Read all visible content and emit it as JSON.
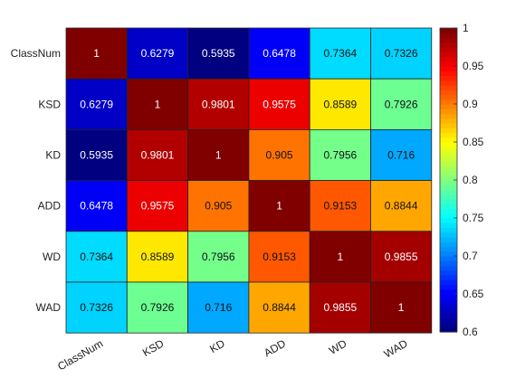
{
  "chart_data": {
    "type": "heatmap",
    "title": "",
    "xlabel": "",
    "ylabel": "",
    "rows": [
      "ClassNum",
      "KSD",
      "KD",
      "ADD",
      "WD",
      "WAD"
    ],
    "cols": [
      "ClassNum",
      "KSD",
      "KD",
      "ADD",
      "WD",
      "WAD"
    ],
    "values": [
      [
        1,
        0.6279,
        0.5935,
        0.6478,
        0.7364,
        0.7326
      ],
      [
        0.6279,
        1,
        0.9801,
        0.9575,
        0.8589,
        0.7926
      ],
      [
        0.5935,
        0.9801,
        1,
        0.905,
        0.7956,
        0.716
      ],
      [
        0.6478,
        0.9575,
        0.905,
        1,
        0.9153,
        0.8844
      ],
      [
        0.7364,
        0.8589,
        0.7956,
        0.9153,
        1,
        0.9855
      ],
      [
        0.7326,
        0.7926,
        0.716,
        0.8844,
        0.9855,
        1
      ]
    ],
    "labels": [
      [
        "1",
        "0.6279",
        "0.5935",
        "0.6478",
        "0.7364",
        "0.7326"
      ],
      [
        "0.6279",
        "1",
        "0.9801",
        "0.9575",
        "0.8589",
        "0.7926"
      ],
      [
        "0.5935",
        "0.9801",
        "1",
        "0.905",
        "0.7956",
        "0.716"
      ],
      [
        "0.6478",
        "0.9575",
        "0.905",
        "1",
        "0.9153",
        "0.8844"
      ],
      [
        "0.7364",
        "0.8589",
        "0.7956",
        "0.9153",
        "1",
        "0.9855"
      ],
      [
        "0.7326",
        "0.7926",
        "0.716",
        "0.8844",
        "0.9855",
        "1"
      ]
    ],
    "colormap": "jet",
    "clim": [
      0.6,
      1
    ],
    "colorbar": {
      "position": "right",
      "ticks": [
        0.6,
        0.65,
        0.7,
        0.75,
        0.8,
        0.85,
        0.9,
        0.95,
        1
      ],
      "tick_labels": [
        "0.6",
        "0.65",
        "0.7",
        "0.75",
        "0.8",
        "0.85",
        "0.9",
        "0.95",
        "1"
      ]
    },
    "grid": true,
    "x_tick_rotation_deg": -30
  }
}
